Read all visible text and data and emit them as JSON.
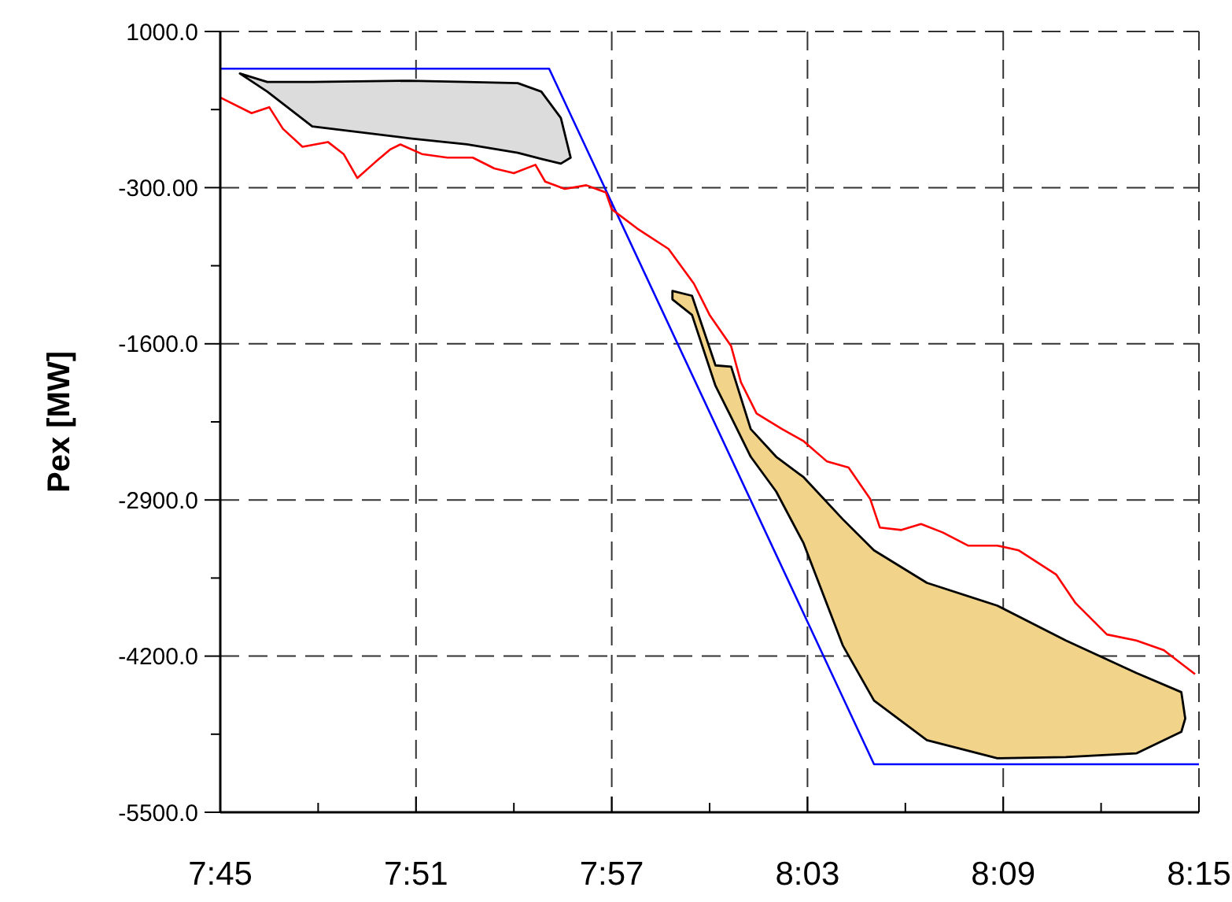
{
  "chart_data": {
    "type": "line",
    "ylabel": "Pex [MW]",
    "xlim": [
      7.75,
      8.25
    ],
    "ylim": [
      -5500,
      1000
    ],
    "xticks": [
      {
        "value": 7.75,
        "label": "7:45"
      },
      {
        "value": 7.8,
        "label": null
      },
      {
        "value": 7.85,
        "label": "7:51"
      },
      {
        "value": 7.9,
        "label": null
      },
      {
        "value": 7.95,
        "label": "7:57"
      },
      {
        "value": 8.0,
        "label": null
      },
      {
        "value": 8.05,
        "label": "8:03"
      },
      {
        "value": 8.1,
        "label": null
      },
      {
        "value": 8.15,
        "label": "8:09"
      },
      {
        "value": 8.2,
        "label": null
      },
      {
        "value": 8.25,
        "label": "8:15"
      }
    ],
    "yticks": [
      {
        "value": 1000,
        "label": "1000.0"
      },
      {
        "value": 350,
        "label": null
      },
      {
        "value": -300,
        "label": "-300.00"
      },
      {
        "value": -950,
        "label": null
      },
      {
        "value": -1600,
        "label": "-1600.0"
      },
      {
        "value": -2250,
        "label": null
      },
      {
        "value": -2900,
        "label": "-2900.0"
      },
      {
        "value": -3550,
        "label": null
      },
      {
        "value": -4200,
        "label": "-4200.0"
      },
      {
        "value": -4850,
        "label": null
      },
      {
        "value": -5500,
        "label": "-5500.0"
      }
    ],
    "grid": true,
    "series": [
      {
        "type": "line",
        "color": "#dcdcdc",
        "x": [
          7.76,
          7.774,
          7.797,
          7.847,
          7.876,
          7.902,
          7.914,
          7.924,
          7.929
        ],
        "values": [
          null,
          null,
          null,
          null,
          null,
          null,
          null,
          null,
          null
        ],
        "upper": [
          650,
          580,
          580,
          590,
          580,
          570,
          500,
          280,
          -50
        ],
        "lower": [
          650,
          500,
          210,
          110,
          60,
          -10,
          -60,
          -100,
          -50
        ]
      },
      {
        "type": "line",
        "color": "#f2d38a",
        "x": [
          7.981,
          7.991,
          8.003,
          8.011,
          8.021,
          8.034,
          8.048,
          8.068,
          8.084,
          8.111,
          8.147,
          8.182,
          8.218,
          8.241,
          8.243
        ],
        "values": [
          null,
          null,
          null,
          null,
          null,
          null,
          null,
          null,
          null,
          null,
          null,
          null,
          null,
          null,
          null
        ],
        "upper": [
          -1160,
          -1200,
          -1780,
          -1790,
          -2310,
          -2540,
          -2710,
          -3060,
          -3320,
          -3590,
          -3780,
          -4070,
          -4340,
          -4500,
          -4720
        ],
        "lower": [
          -1230,
          -1360,
          -1950,
          -2210,
          -2540,
          -2830,
          -3260,
          -4110,
          -4570,
          -4900,
          -5050,
          -5040,
          -5010,
          -4830,
          -4720
        ]
      },
      {
        "type": "line",
        "color": "#0000ff",
        "x": [
          7.75,
          7.918,
          8.084,
          8.25
        ],
        "values": [
          690,
          690,
          -5100,
          -5100
        ]
      },
      {
        "type": "line",
        "color": "#ff0000",
        "x": [
          7.75,
          7.766,
          7.775,
          7.782,
          7.792,
          7.805,
          7.813,
          7.82,
          7.829,
          7.837,
          7.842,
          7.853,
          7.866,
          7.879,
          7.89,
          7.9,
          7.911,
          7.916,
          7.926,
          7.937,
          7.947,
          7.95,
          7.963,
          7.979,
          7.992,
          8.0,
          8.011,
          8.016,
          8.024,
          8.037,
          8.048,
          8.06,
          8.071,
          8.082,
          8.087,
          8.098,
          8.108,
          8.119,
          8.132,
          8.147,
          8.158,
          8.177,
          8.187,
          8.203,
          8.218,
          8.232,
          8.248
        ],
        "values": [
          450,
          320,
          370,
          190,
          40,
          80,
          -20,
          -220,
          -90,
          20,
          60,
          -20,
          -50,
          -50,
          -140,
          -180,
          -110,
          -250,
          -310,
          -280,
          -340,
          -480,
          -640,
          -810,
          -1100,
          -1360,
          -1620,
          -1920,
          -2180,
          -2310,
          -2410,
          -2580,
          -2630,
          -2890,
          -3130,
          -3150,
          -3100,
          -3170,
          -3280,
          -3280,
          -3320,
          -3520,
          -3760,
          -4020,
          -4070,
          -4150,
          -4350
        ]
      }
    ]
  }
}
